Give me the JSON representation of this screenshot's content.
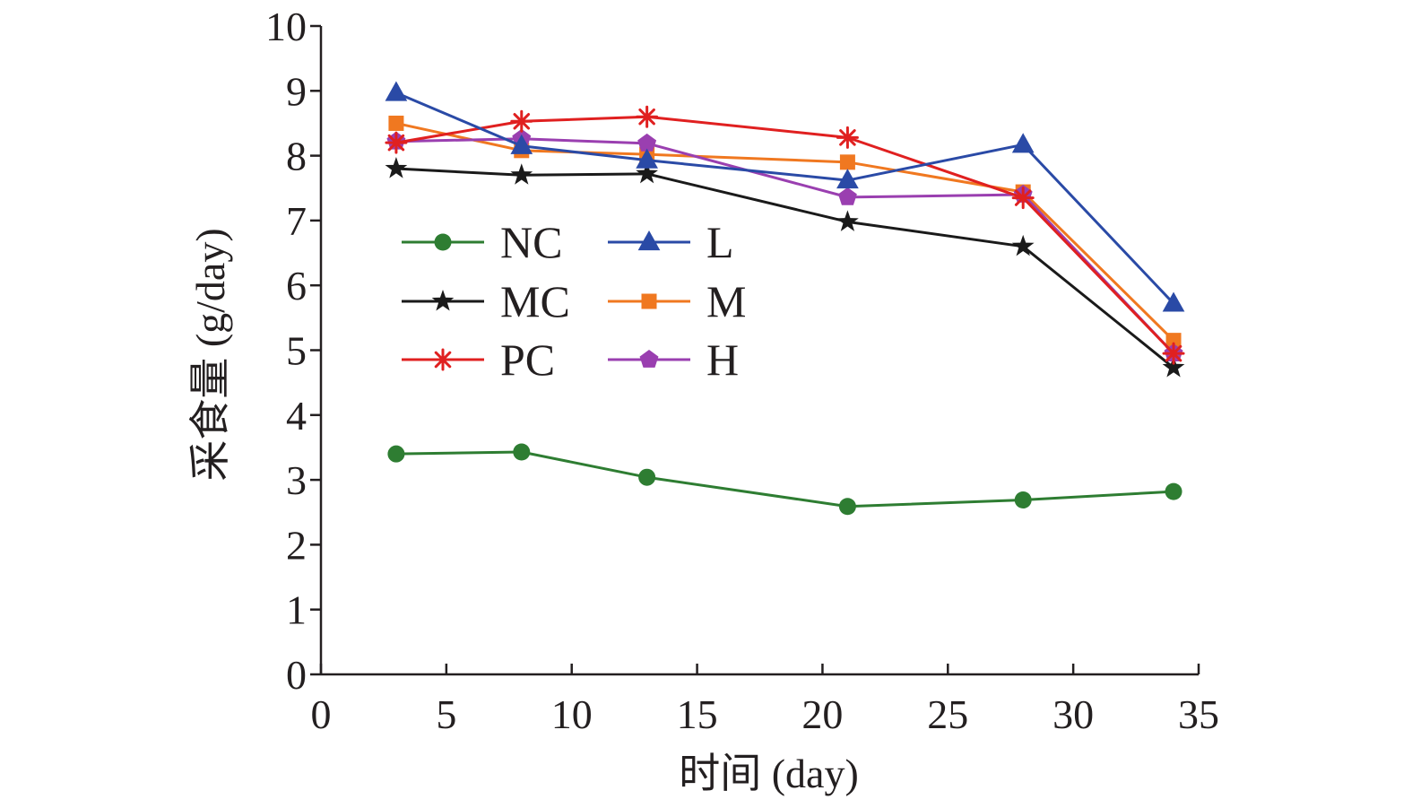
{
  "chart_data": {
    "type": "line",
    "xlabel": "时间 (day)",
    "ylabel": "采食量 (g/day)",
    "xlim": [
      0,
      35
    ],
    "ylim": [
      0,
      10
    ],
    "xticks": [
      0,
      5,
      10,
      15,
      20,
      25,
      30,
      35
    ],
    "yticks": [
      0,
      1,
      2,
      3,
      4,
      5,
      6,
      7,
      8,
      9,
      10
    ],
    "x": [
      3,
      8,
      13,
      21,
      28,
      34
    ],
    "grid": false,
    "legend_position": "center-left, two columns",
    "series": [
      {
        "name": "NC",
        "color": "#2e7d32",
        "marker": "circle",
        "values": [
          3.4,
          3.43,
          3.04,
          2.59,
          2.69,
          2.82
        ]
      },
      {
        "name": "L",
        "color": "#2a4aa6",
        "marker": "triangle",
        "values": [
          8.97,
          8.15,
          7.93,
          7.62,
          8.17,
          5.72
        ]
      },
      {
        "name": "MC",
        "color": "#1a1a1a",
        "marker": "star",
        "values": [
          7.8,
          7.7,
          7.72,
          6.98,
          6.6,
          4.73
        ]
      },
      {
        "name": "M",
        "color": "#f07820",
        "marker": "square",
        "values": [
          8.5,
          8.08,
          8.02,
          7.9,
          7.44,
          5.15
        ]
      },
      {
        "name": "PC",
        "color": "#e02020",
        "marker": "asterisk",
        "values": [
          8.2,
          8.53,
          8.6,
          8.28,
          7.35,
          4.95
        ]
      },
      {
        "name": "H",
        "color": "#9a3fb0",
        "marker": "pentagon",
        "values": [
          8.22,
          8.26,
          8.19,
          7.36,
          7.4,
          4.95
        ]
      }
    ]
  }
}
